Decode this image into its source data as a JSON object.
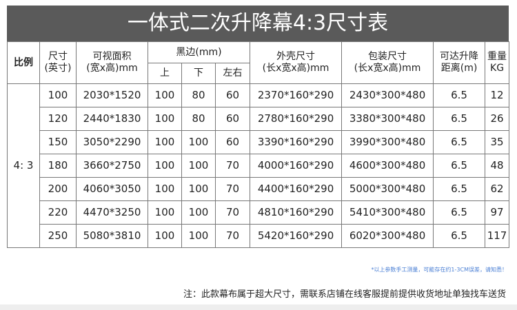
{
  "title": "一体式二次升降幕4:3尺寸表",
  "headers": {
    "ratio": "比例",
    "size": [
      "尺寸",
      "(英寸)"
    ],
    "viewable": [
      "可视面积",
      "(宽x高)mm"
    ],
    "border": "黑边(mm)",
    "border_top": "上",
    "border_bottom": "下",
    "border_sides": "左右",
    "shell": [
      "外壳尺寸",
      "(长x宽x高)mm"
    ],
    "package": [
      "包装尺寸",
      "(长x宽x高)mm"
    ],
    "lift": [
      "可达升降",
      "距离(m)"
    ],
    "weight": [
      "重量",
      "KG"
    ]
  },
  "ratio_value": "4: 3",
  "rows": [
    [
      "100",
      "2030*1520",
      "100",
      "80",
      "60",
      "2370*160*290",
      "2430*300*480",
      "6.5",
      "12"
    ],
    [
      "120",
      "2440*1830",
      "100",
      "80",
      "60",
      "2780*160*290",
      "3380*300*480",
      "6.5",
      "26"
    ],
    [
      "150",
      "3050*2290",
      "100",
      "100",
      "60",
      "3390*160*290",
      "3990*300*480",
      "6.5",
      "35"
    ],
    [
      "180",
      "3660*2750",
      "100",
      "100",
      "70",
      "4000*160*290",
      "4600*300*480",
      "6.5",
      "48"
    ],
    [
      "200",
      "4060*3050",
      "100",
      "100",
      "70",
      "4400*160*290",
      "5000*300*480",
      "6.5",
      "62"
    ],
    [
      "220",
      "4470*3250",
      "100",
      "100",
      "70",
      "4810*160*290",
      "5410*300*480",
      "6.5",
      "97"
    ],
    [
      "250",
      "5080*3810",
      "100",
      "100",
      "70",
      "5420*160*290",
      "6020*300*480",
      "6.5",
      "117"
    ]
  ],
  "disclaimer": "*以上参数手工测量，可能存在约1-3CM误差，请知悉！",
  "note": "注：此款幕布属于超大尺寸，需联系店铺在线客服提前提供收货地址单独找车送货",
  "colors": {
    "title_bg": "#5a5a5a",
    "disclaimer": "#4a7fd4"
  }
}
